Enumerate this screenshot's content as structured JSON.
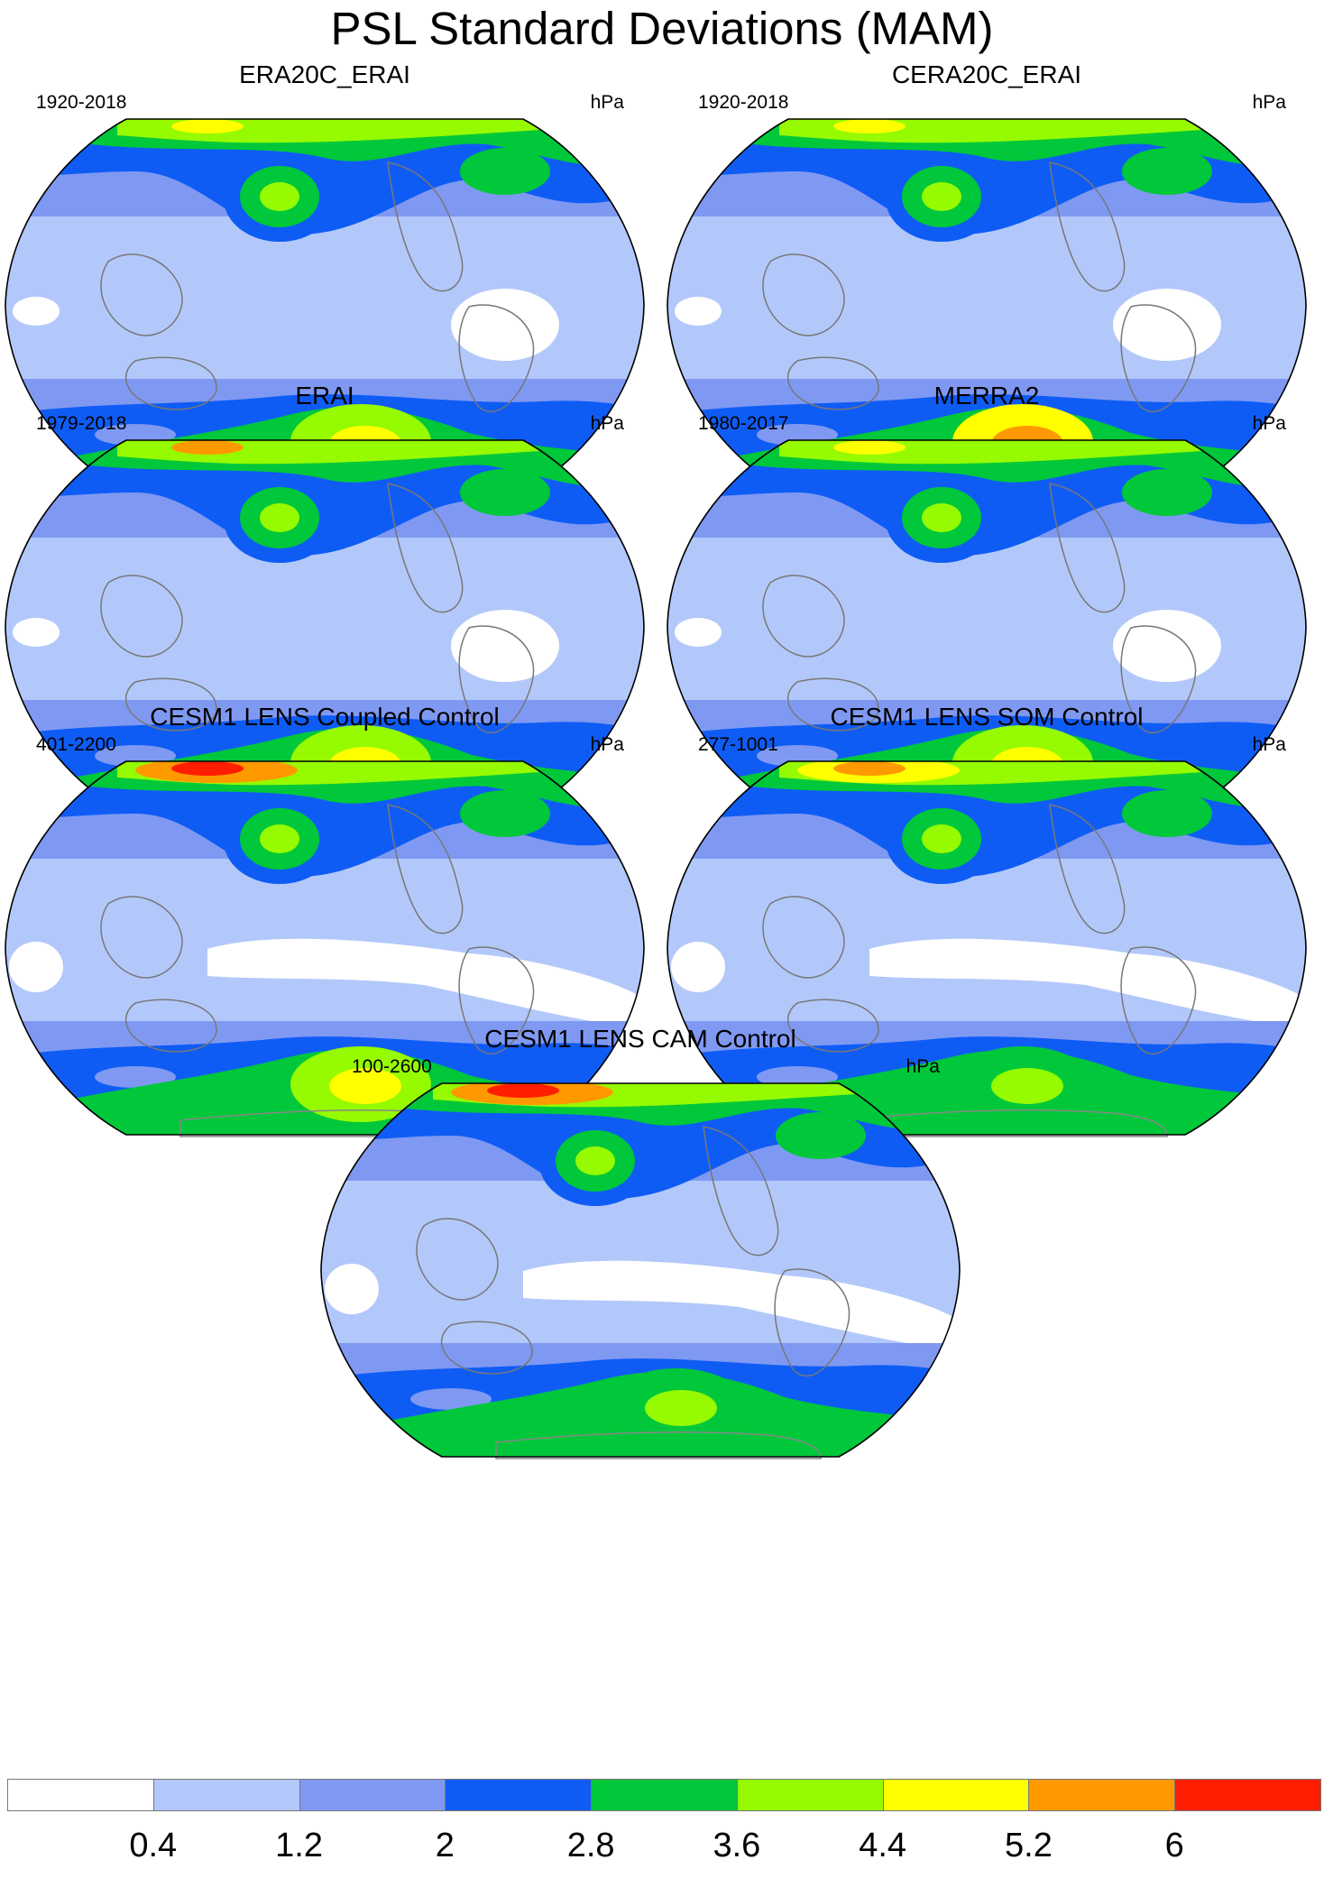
{
  "title": "PSL Standard Deviations (MAM)",
  "units": "hPa",
  "panels": [
    {
      "title": "ERA20C_ERAI",
      "years": "1920-2018",
      "north_peak": 5.0,
      "south_peak": 5.0,
      "tropics_low": false
    },
    {
      "title": "CERA20C_ERAI",
      "years": "1920-2018",
      "north_peak": 4.8,
      "south_peak": 5.6,
      "tropics_low": false
    },
    {
      "title": "ERAI",
      "years": "1979-2018",
      "north_peak": 5.2,
      "south_peak": 4.8,
      "tropics_low": false
    },
    {
      "title": "MERRA2",
      "years": "1980-2017",
      "north_peak": 4.8,
      "south_peak": 4.8,
      "tropics_low": false
    },
    {
      "title": "CESM1 LENS Coupled Control",
      "years": "401-2200",
      "north_peak": 6.2,
      "south_peak": 4.8,
      "tropics_low": true
    },
    {
      "title": "CESM1 LENS SOM Control",
      "years": "277-1001",
      "north_peak": 5.6,
      "south_peak": 4.2,
      "tropics_low": true
    },
    {
      "title": "CESM1 LENS CAM Control",
      "years": "100-2600",
      "north_peak": 6.2,
      "south_peak": 4.2,
      "tropics_low": true
    }
  ],
  "colorbar": {
    "levels": [
      "0.4",
      "1.2",
      "2",
      "2.8",
      "3.6",
      "4.4",
      "5.2",
      "6"
    ],
    "colors": [
      "#ffffff",
      "#b3c8fa",
      "#7f99f2",
      "#0f5cf5",
      "#00c83a",
      "#96fa00",
      "#ffff00",
      "#ff9900",
      "#ff1e00"
    ]
  }
}
